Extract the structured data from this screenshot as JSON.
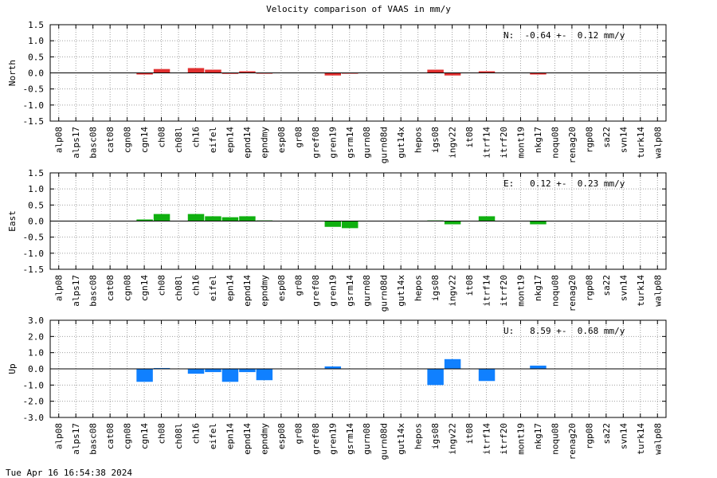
{
  "title": "Velocity comparison of VAAS in mm/y",
  "timestamp": "Tue Apr 16 16:54:38 2024",
  "chart_data": [
    {
      "type": "bar",
      "ylabel": "North",
      "color": "#e03030",
      "ylim": [
        -1.5,
        1.5
      ],
      "yticks": [
        "1.5",
        "1.0",
        "0.5",
        "0.0",
        "-0.5",
        "-1.0",
        "-1.5"
      ],
      "annotation": "N:  -0.64 +-  0.12 mm/y",
      "grid": true,
      "categories": [
        "alp08",
        "alps17",
        "basc08",
        "cat08",
        "cgn08",
        "cgn14",
        "ch08",
        "ch08l",
        "ch16",
        "eifel",
        "epn14",
        "epnd14",
        "epndmy",
        "esp08",
        "gr08",
        "gref08",
        "gren19",
        "gsrm14",
        "gurn08",
        "gurn08d",
        "gut14x",
        "hepos",
        "igs08",
        "ingv22",
        "it08",
        "itrf14",
        "itrf20",
        "mont19",
        "nkg17",
        "noqu08",
        "renag20",
        "rgp08",
        "sa22",
        "svn14",
        "turk14",
        "walp08"
      ],
      "values": [
        0,
        0,
        0,
        0,
        0,
        -0.05,
        0.12,
        0,
        0.15,
        0.1,
        -0.03,
        0.05,
        -0.02,
        0,
        0,
        0,
        -0.08,
        -0.02,
        0,
        0,
        0,
        0,
        0.1,
        -0.08,
        0,
        0.05,
        0,
        0,
        -0.05,
        0,
        0,
        0,
        0,
        0,
        0,
        0
      ]
    },
    {
      "type": "bar",
      "ylabel": "East",
      "color": "#10b010",
      "ylim": [
        -1.5,
        1.5
      ],
      "yticks": [
        "1.5",
        "1.0",
        "0.5",
        "0.0",
        "-0.5",
        "-1.0",
        "-1.5"
      ],
      "annotation": "E:   0.12 +-  0.23 mm/y",
      "grid": true,
      "categories": [
        "alp08",
        "alps17",
        "basc08",
        "cat08",
        "cgn08",
        "cgn14",
        "ch08",
        "ch08l",
        "ch16",
        "eifel",
        "epn14",
        "epnd14",
        "epndmy",
        "esp08",
        "gr08",
        "gref08",
        "gren19",
        "gsrm14",
        "gurn08",
        "gurn08d",
        "gut14x",
        "hepos",
        "igs08",
        "ingv22",
        "it08",
        "itrf14",
        "itrf20",
        "mont19",
        "nkg17",
        "noqu08",
        "renag20",
        "rgp08",
        "sa22",
        "svn14",
        "turk14",
        "walp08"
      ],
      "values": [
        0,
        0,
        0,
        0,
        0,
        0.05,
        0.22,
        0,
        0.22,
        0.15,
        0.12,
        0.15,
        0.02,
        0,
        0,
        0,
        -0.18,
        -0.22,
        0,
        0,
        0,
        0,
        0.02,
        -0.1,
        0,
        0.15,
        0,
        0,
        -0.1,
        0,
        0,
        0,
        0,
        0,
        0,
        0
      ]
    },
    {
      "type": "bar",
      "ylabel": "Up",
      "color": "#1080ff",
      "ylim": [
        -3.0,
        3.0
      ],
      "yticks": [
        "3.0",
        "2.0",
        "1.0",
        "0.0",
        "-1.0",
        "-2.0",
        "-3.0"
      ],
      "annotation": "U:   8.59 +-  0.68 mm/y",
      "grid": true,
      "categories": [
        "alp08",
        "alps17",
        "basc08",
        "cat08",
        "cgn08",
        "cgn14",
        "ch08",
        "ch08l",
        "ch16",
        "eifel",
        "epn14",
        "epnd14",
        "epndmy",
        "esp08",
        "gr08",
        "gref08",
        "gren19",
        "gsrm14",
        "gurn08",
        "gurn08d",
        "gut14x",
        "hepos",
        "igs08",
        "ingv22",
        "it08",
        "itrf14",
        "itrf20",
        "mont19",
        "nkg17",
        "noqu08",
        "renag20",
        "rgp08",
        "sa22",
        "svn14",
        "turk14",
        "walp08"
      ],
      "values": [
        0,
        0,
        0,
        0,
        0,
        -0.8,
        0.05,
        0,
        -0.3,
        -0.2,
        -0.8,
        -0.2,
        -0.7,
        0,
        0,
        0,
        0.15,
        0,
        0,
        0,
        0,
        0,
        -1.0,
        0.6,
        0,
        -0.75,
        0,
        0,
        0.2,
        0,
        0,
        0,
        0,
        0,
        0,
        0
      ]
    }
  ]
}
